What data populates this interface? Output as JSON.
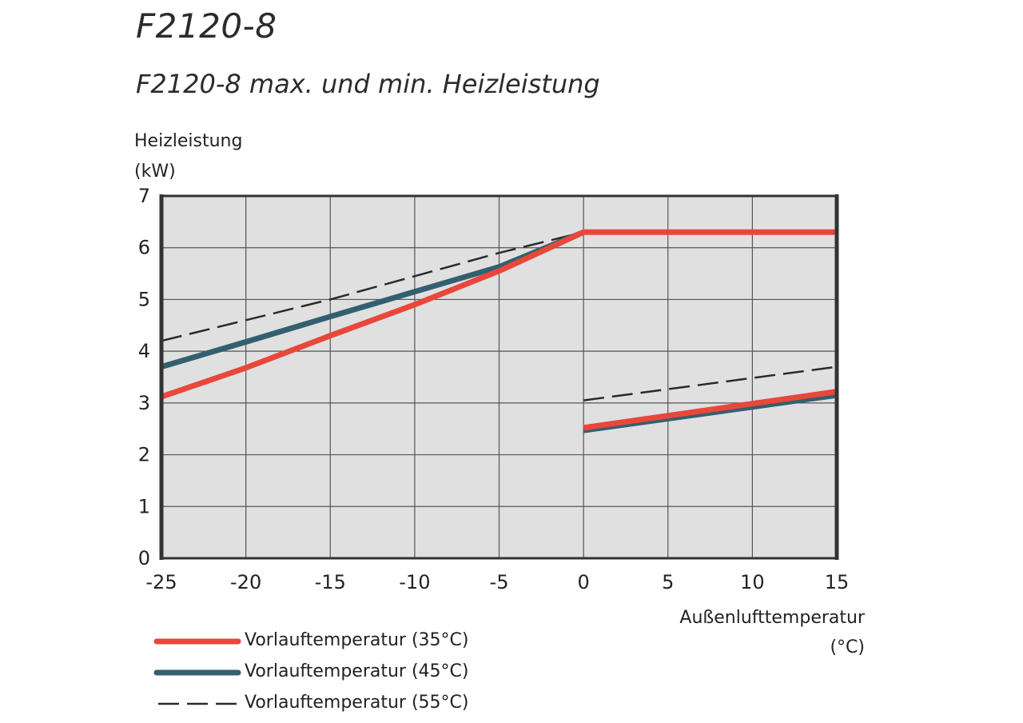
{
  "document": {
    "title": "F2120-8"
  },
  "chart_data": {
    "type": "line",
    "title": "F2120-8 max. und min. Heizleistung",
    "ylabel": [
      "Heizleistung",
      "(kW)"
    ],
    "xlabel": [
      "Außenlufttemperatur",
      "(°C)"
    ],
    "xlim": [
      -25,
      15
    ],
    "ylim": [
      0,
      7
    ],
    "xticks": [
      -25,
      -20,
      -15,
      -10,
      -5,
      0,
      5,
      10,
      15
    ],
    "yticks": [
      0,
      1,
      2,
      3,
      4,
      5,
      6,
      7
    ],
    "xtick_labels": [
      "-25",
      "-20",
      "-15",
      "-10",
      "-5",
      "0",
      "5",
      "10",
      "15"
    ],
    "ytick_labels": [
      "0",
      "1",
      "2",
      "3",
      "4",
      "5",
      "6",
      "7"
    ],
    "grid": true,
    "plot_background": "#e0e0e0",
    "legend_position": "bottom-left",
    "series": [
      {
        "name": "Vorlauftemperatur (35°C)",
        "color": "#e8473a",
        "style": "solid-thick",
        "segments": [
          {
            "role": "max",
            "points": [
              [
                -25,
                3.12
              ],
              [
                -20,
                3.68
              ],
              [
                -15,
                4.3
              ],
              [
                -10,
                4.9
              ],
              [
                -5,
                5.55
              ],
              [
                0,
                6.3
              ],
              [
                15,
                6.3
              ]
            ]
          },
          {
            "role": "min",
            "points": [
              [
                0,
                2.52
              ],
              [
                15,
                3.22
              ]
            ]
          }
        ]
      },
      {
        "name": "Vorlauftemperatur (45°C)",
        "color": "#336070",
        "style": "solid-thick",
        "segments": [
          {
            "role": "max",
            "points": [
              [
                -25,
                3.7
              ],
              [
                -20,
                4.18
              ],
              [
                -15,
                4.67
              ],
              [
                -10,
                5.15
              ],
              [
                -5,
                5.63
              ],
              [
                0,
                6.3
              ]
            ]
          },
          {
            "role": "min",
            "points": [
              [
                0,
                2.47
              ],
              [
                15,
                3.15
              ]
            ]
          }
        ]
      },
      {
        "name": "Vorlauftemperatur (55°C)",
        "color": "#2a2a2a",
        "style": "dashed",
        "segments": [
          {
            "role": "max",
            "points": [
              [
                -25,
                4.2
              ],
              [
                -20,
                4.6
              ],
              [
                -15,
                5.0
              ],
              [
                -10,
                5.45
              ],
              [
                -5,
                5.9
              ],
              [
                0,
                6.3
              ]
            ]
          },
          {
            "role": "min",
            "points": [
              [
                0,
                3.05
              ],
              [
                15,
                3.7
              ]
            ]
          }
        ]
      }
    ]
  }
}
